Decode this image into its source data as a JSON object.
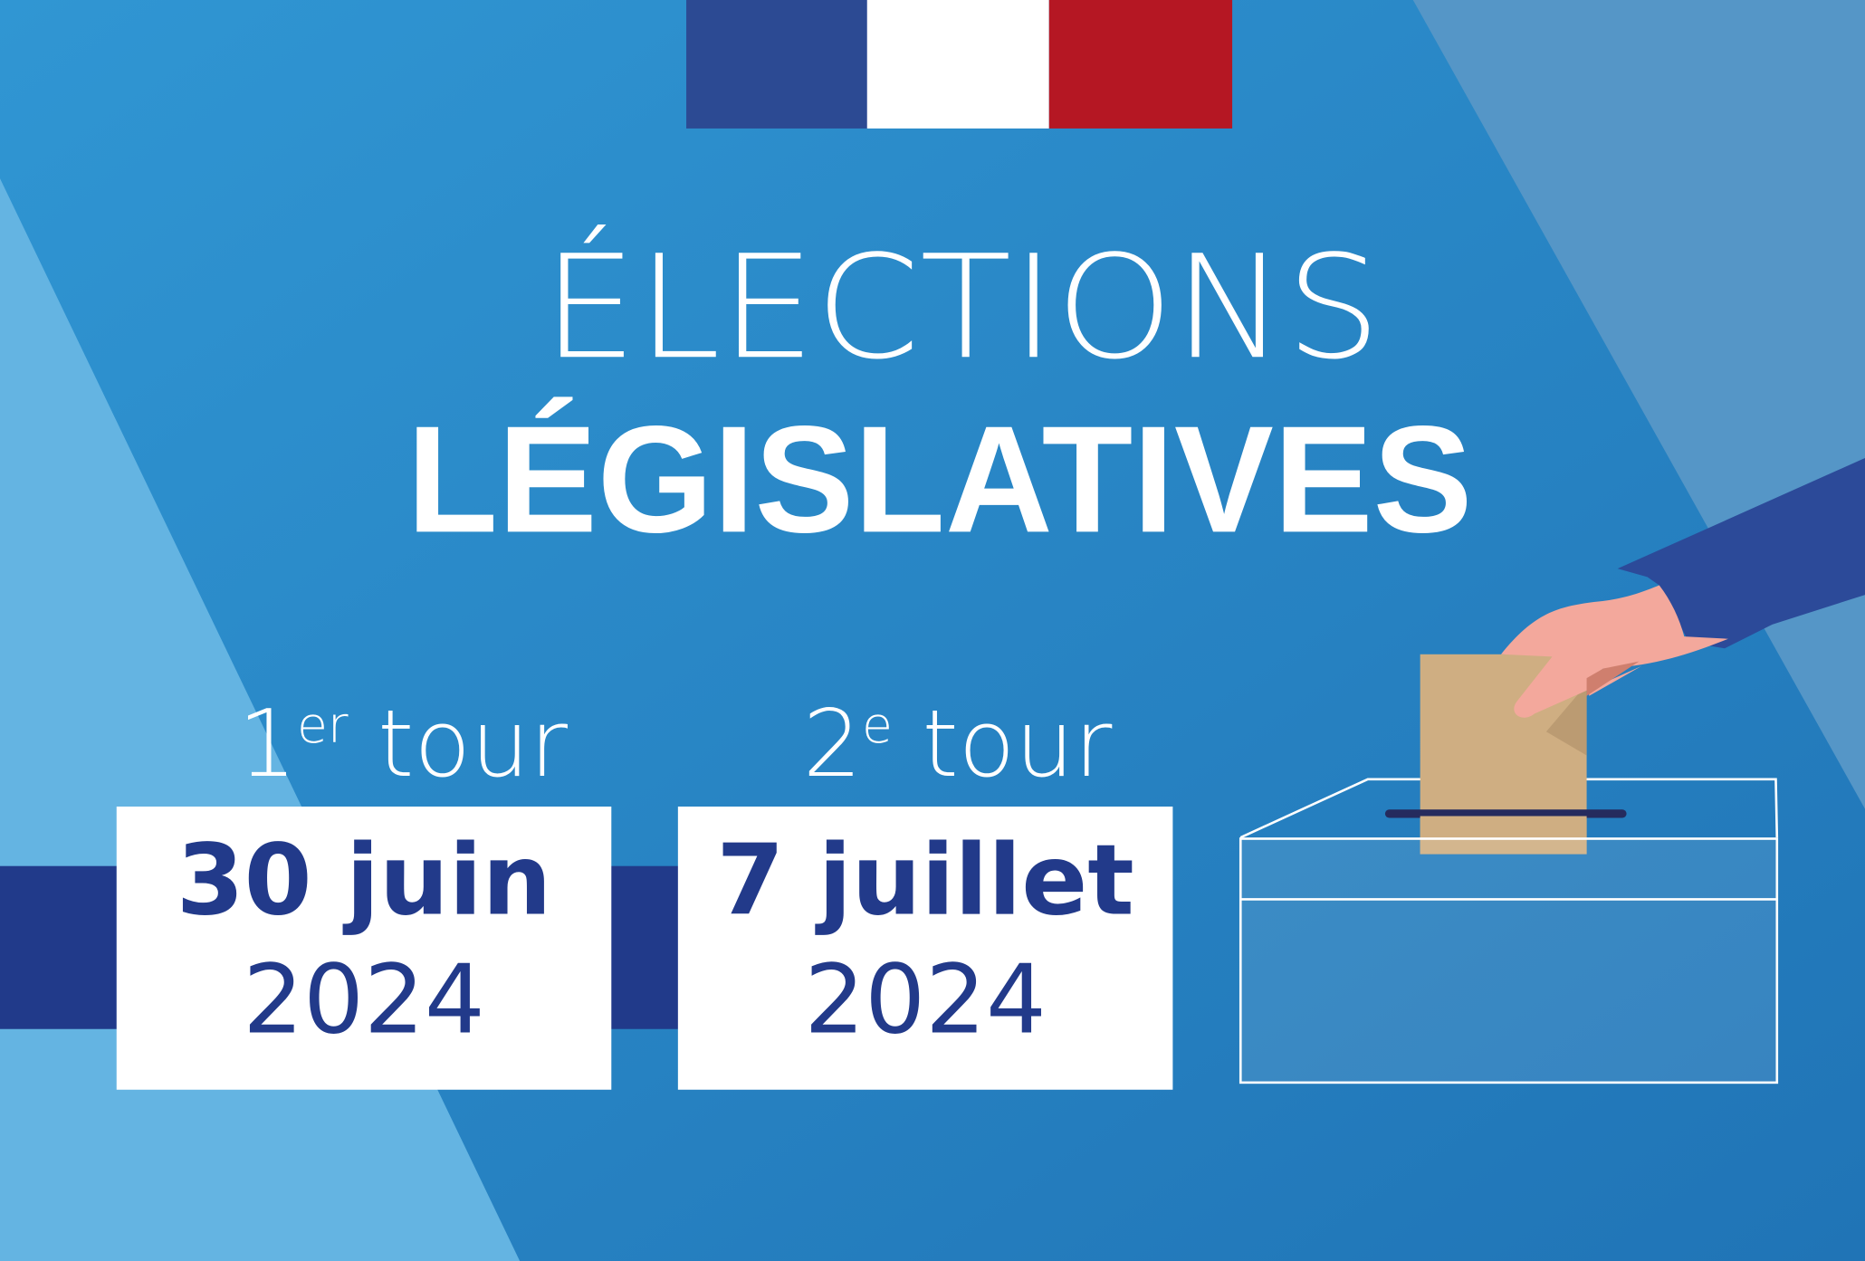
{
  "title": {
    "line1": "ÉLECTIONS",
    "line2": "LÉGISLATIVES"
  },
  "rounds": [
    {
      "number": "1",
      "suffix": "er",
      "word": "tour",
      "date": "30 juin",
      "year": "2024"
    },
    {
      "number": "2",
      "suffix": "e",
      "word": "tour",
      "date": "7 juillet",
      "year": "2024"
    }
  ],
  "colors": {
    "flag_blue": "#2c4a93",
    "flag_white": "#ffffff",
    "flag_red": "#b51723",
    "band_navy": "#213a8a",
    "date_text": "#223a8a",
    "ballot": "#cfae82",
    "skin": "#f3a89c",
    "sleeve": "#2c4a99"
  },
  "icons": {
    "illustration": "hand-casting-ballot-into-box-icon",
    "flag": "french-flag-icon"
  }
}
